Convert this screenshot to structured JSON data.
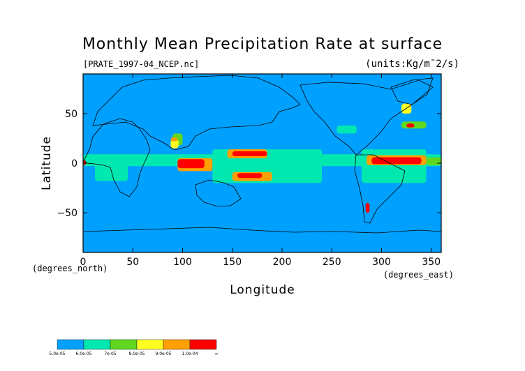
{
  "chart_data": {
    "type": "heatmap",
    "title": "Monthly Mean Precipitation Rate at surface",
    "subtitle": "[PRATE_1997-04_NCEP.nc]",
    "units": "(units:Kg/m¯2/s)",
    "xlabel": "Longitude",
    "ylabel": "Latitude",
    "x_unit_label": "(degrees_east)",
    "y_unit_label": "(degrees_north)",
    "xlim": [
      0,
      360
    ],
    "ylim": [
      -90,
      90
    ],
    "x_ticks": [
      0,
      50,
      100,
      150,
      200,
      250,
      300,
      350
    ],
    "y_ticks": [
      -50,
      0,
      50
    ],
    "x_tick_labels": [
      "0",
      "50",
      "100",
      "150",
      "200",
      "250",
      "300",
      "350"
    ],
    "y_tick_labels": [
      "−50",
      "0",
      "50"
    ],
    "colorbar": {
      "labels": [
        "5.0e-05",
        "6.0e-05",
        "7e-05",
        "8.0e-05",
        "9.0e-05",
        "1.0e-04",
        "∞"
      ],
      "colors": [
        "#00a0ff",
        "#00e8b0",
        "#60d820",
        "#ffff20",
        "#ffa000",
        "#ff0000"
      ]
    },
    "regions": [
      {
        "level": 1,
        "lon": [
          0,
          360
        ],
        "lat": [
          -90,
          90
        ]
      },
      {
        "level": 2,
        "lon": [
          0,
          360
        ],
        "lat": [
          -3,
          9
        ]
      },
      {
        "level": 2,
        "lon": [
          130,
          240
        ],
        "lat": [
          -20,
          14
        ]
      },
      {
        "level": 2,
        "lon": [
          280,
          345
        ],
        "lat": [
          -20,
          14
        ]
      },
      {
        "level": 2,
        "lon": [
          12,
          45
        ],
        "lat": [
          -18,
          5
        ]
      },
      {
        "level": 2,
        "lon": [
          255,
          275
        ],
        "lat": [
          30,
          38
        ]
      },
      {
        "level": 3,
        "lon": [
          320,
          345
        ],
        "lat": [
          35,
          42
        ]
      },
      {
        "level": 3,
        "lon": [
          345,
          360
        ],
        "lat": [
          -2,
          6
        ]
      },
      {
        "level": 3,
        "lon": [
          90,
          100
        ],
        "lat": [
          18,
          30
        ]
      },
      {
        "level": 4,
        "lon": [
          88,
          96
        ],
        "lat": [
          15,
          24
        ]
      },
      {
        "level": 4,
        "lon": [
          320,
          330
        ],
        "lat": [
          50,
          60
        ]
      },
      {
        "level": 5,
        "lon": [
          88,
          95
        ],
        "lat": [
          22,
          26
        ]
      },
      {
        "level": 5,
        "lon": [
          95,
          130
        ],
        "lat": [
          -8,
          5
        ]
      },
      {
        "level": 5,
        "lon": [
          145,
          185
        ],
        "lat": [
          5,
          14
        ]
      },
      {
        "level": 5,
        "lon": [
          150,
          190
        ],
        "lat": [
          -18,
          -9
        ]
      },
      {
        "level": 5,
        "lon": [
          285,
          345
        ],
        "lat": [
          -2,
          8
        ]
      },
      {
        "level": 6,
        "lon": [
          95,
          122
        ],
        "lat": [
          -5,
          4
        ]
      },
      {
        "level": 6,
        "lon": [
          150,
          185
        ],
        "lat": [
          7,
          12
        ]
      },
      {
        "level": 6,
        "lon": [
          155,
          180
        ],
        "lat": [
          -15,
          -10
        ]
      },
      {
        "level": 6,
        "lon": [
          290,
          340
        ],
        "lat": [
          -1,
          6
        ]
      },
      {
        "level": 6,
        "lon": [
          0,
          3
        ],
        "lat": [
          -2,
          3
        ]
      },
      {
        "level": 6,
        "lon": [
          284,
          288
        ],
        "lat": [
          -50,
          -40
        ]
      },
      {
        "level": 6,
        "lon": [
          325,
          333
        ],
        "lat": [
          36,
          40
        ]
      }
    ]
  }
}
